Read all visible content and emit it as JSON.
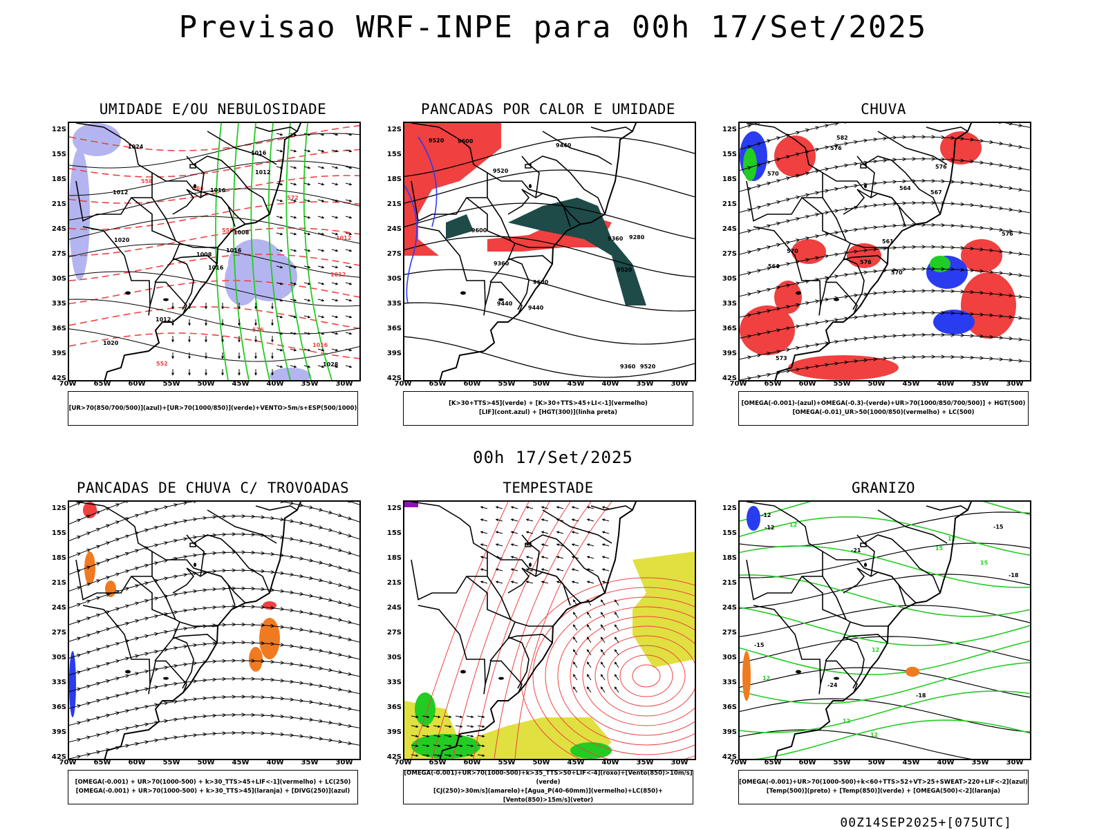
{
  "header": {
    "title": "Previsao WRF-INPE  para 00h 17/Set/2025",
    "middle_title": "00h 17/Set/2025",
    "footer_stamp": "00Z14SEP2025+[075UTC]"
  },
  "axes": {
    "lat_labels": [
      "12S",
      "15S",
      "18S",
      "21S",
      "24S",
      "27S",
      "30S",
      "33S",
      "36S",
      "39S",
      "42S"
    ],
    "lon_labels": [
      "70W",
      "65W",
      "60W",
      "55W",
      "50W",
      "45W",
      "40W",
      "35W",
      "30W"
    ]
  },
  "colors": {
    "red": "#f04040",
    "blue": "#2a3cf0",
    "light_blue": "#b4b4f0",
    "green": "#22cc22",
    "dark_teal": "#1e4a48",
    "yellow": "#e0e040",
    "orange": "#f07a20",
    "purple": "#9010c0"
  },
  "panels": [
    {
      "id": "umidade",
      "title": "UMIDADE E/OU NEBULOSIDADE",
      "legend": [
        "[UR>70(850/700/500)](azul)+[UR>70(1000/850)](verde)+VENTO>5m/s+ESP(500/1000)"
      ],
      "contour_labels": [
        "1016",
        "1012",
        "1008",
        "1020",
        "1008",
        "1012",
        "1016",
        "1016",
        "1012",
        "1016",
        "1024",
        "1028",
        "1020",
        "1012",
        "576",
        "572",
        "564",
        "558",
        "552",
        "558",
        "1016",
        "1012"
      ]
    },
    {
      "id": "pancadas-calor",
      "title": "PANCADAS POR CALOR E UMIDADE",
      "legend": [
        "[K>30+TTS>45](verde) + [K>30+TTS>45+LI<-1](vermelho)",
        "[LIF](cont.azul) + [HGT(300)](linha preta)"
      ],
      "contour_labels": [
        "9600",
        "9600",
        "9600",
        "9520",
        "9520",
        "9520",
        "9440",
        "9360",
        "9440",
        "9360",
        "9280",
        "9440",
        "9520",
        "9360"
      ]
    },
    {
      "id": "chuva",
      "title": "CHUVA",
      "legend": [
        "[OMEGA(-0.001)-(azul)+OMEGA(-0.3)-(verde)+UR>70(1000/850/700/500)] + HGT(500)",
        "[OMEGA(-0.01)_UR>50(1000/850)(vermelho) + LC(500)"
      ],
      "contour_labels": [
        "582",
        "576",
        "576",
        "576",
        "570",
        "570",
        "570",
        "567",
        "564",
        "564",
        "561",
        "573",
        "576"
      ]
    },
    {
      "id": "pancadas-trovoadas",
      "title": "PANCADAS DE CHUVA C/ TROVOADAS",
      "legend": [
        "[OMEGA(-0.001) + UR>70(1000-500) + k>30_TTS>45+LIF<-1](vermelho) + LC(250)",
        "[OMEGA(-0.001) + UR>70(1000-500) + k>30_TTS>45](laranja) + [DIVG(250)](azul)"
      ],
      "contour_labels": []
    },
    {
      "id": "tempestade",
      "title": "TEMPESTADE",
      "legend": [
        "[OMEGA(-0.001)+UR>70(1000-500)+k>35_TTS>50+LIF<-4](roxo)+[Vento(850)>10m/s](verde)",
        "[CJ(250)>30m/s](amarelo)+[Agua_P(40-60mm)](vermelho)+LC(850)+[Vento(850)>15m/s](vetor)"
      ],
      "contour_labels": []
    },
    {
      "id": "granizo",
      "title": "GRANIZO",
      "legend": [
        "[OMEGA(-0.001)+UR>70(1000-500)+k<60+TTS>52+VT>25+SWEAT>220+LIF<-2](azul)",
        "[Temp(500)](preto) + [Temp(850)](verde) + [OMEGA(500)<-2](laranja)"
      ],
      "contour_labels": [
        "-12",
        "-12",
        "-15",
        "-15",
        "-18",
        "-18",
        "-21",
        "-24",
        "12",
        "12",
        "12",
        "12",
        "12",
        "12",
        "15",
        "15"
      ]
    }
  ]
}
